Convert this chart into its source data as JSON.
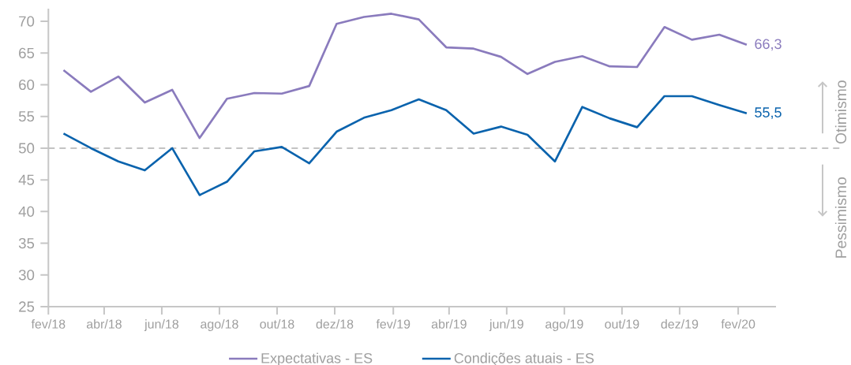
{
  "chart_data": {
    "type": "line",
    "x": [
      "2018-02-17",
      "2018-03-18",
      "2018-04-16",
      "2018-05-14",
      "2018-06-12",
      "2018-07-11",
      "2018-08-09",
      "2018-09-07",
      "2018-10-06",
      "2018-11-04",
      "2018-12-03",
      "2019-01-01",
      "2019-01-30",
      "2019-02-28",
      "2019-03-29",
      "2019-04-27",
      "2019-05-26",
      "2019-06-23",
      "2019-07-22",
      "2019-08-20",
      "2019-09-18",
      "2019-10-17",
      "2019-11-15",
      "2019-12-14",
      "2020-01-12",
      "2020-02-10"
    ],
    "xlim": [
      "2018-02-01",
      "2020-03-12"
    ],
    "xticks": [
      {
        "value": "2018-02",
        "label": "fev/18"
      },
      {
        "value": "2018-04",
        "label": "abr/18"
      },
      {
        "value": "2018-06",
        "label": "jun/18"
      },
      {
        "value": "2018-08",
        "label": "ago/18"
      },
      {
        "value": "2018-10",
        "label": "out/18"
      },
      {
        "value": "2018-12",
        "label": "dez/18"
      },
      {
        "value": "2019-02",
        "label": "fev/19"
      },
      {
        "value": "2019-04",
        "label": "abr/19"
      },
      {
        "value": "2019-06",
        "label": "jun/19"
      },
      {
        "value": "2019-08",
        "label": "ago/19"
      },
      {
        "value": "2019-10",
        "label": "out/19"
      },
      {
        "value": "2019-12",
        "label": "dez/19"
      },
      {
        "value": "2020-02",
        "label": "fev/20"
      }
    ],
    "ylim": [
      25,
      72
    ],
    "yticks": [
      25,
      30,
      35,
      40,
      45,
      50,
      55,
      60,
      65,
      70
    ],
    "series": [
      {
        "name": "Expectativas - ES",
        "color": "#8a7bbd",
        "values": [
          62.3,
          58.9,
          61.3,
          57.2,
          59.2,
          51.6,
          57.8,
          58.7,
          58.6,
          59.8,
          69.6,
          70.7,
          71.2,
          70.3,
          65.9,
          65.7,
          64.4,
          61.7,
          63.6,
          64.5,
          62.9,
          62.8,
          69.1,
          67.1,
          67.9,
          66.3
        ],
        "value_labels": [
          null,
          null,
          null,
          null,
          null,
          null,
          null,
          null,
          null,
          null,
          null,
          null,
          null,
          null,
          null,
          null,
          null,
          null,
          null,
          null,
          null,
          null,
          null,
          null,
          null,
          "66,3"
        ]
      },
      {
        "name": "Condições atuais - ES",
        "color": "#0a63ad",
        "values": [
          52.3,
          50.0,
          47.9,
          46.5,
          50.0,
          42.6,
          44.7,
          49.5,
          50.2,
          47.6,
          52.6,
          54.8,
          56.0,
          57.7,
          56.0,
          52.3,
          53.4,
          52.1,
          47.9,
          56.5,
          54.7,
          53.3,
          58.2,
          58.2,
          56.8,
          55.5
        ],
        "value_labels": [
          null,
          null,
          null,
          null,
          null,
          null,
          null,
          null,
          null,
          null,
          null,
          null,
          null,
          null,
          null,
          null,
          null,
          null,
          null,
          null,
          null,
          null,
          null,
          null,
          null,
          "55,5"
        ]
      }
    ],
    "ref_lines": [
      {
        "axis": "y",
        "value": 50,
        "color": "#c3c3c3",
        "line_style": "dashed"
      }
    ],
    "annotations": [
      "Otimismo",
      "Pessimismo"
    ],
    "legend": "bottom"
  }
}
